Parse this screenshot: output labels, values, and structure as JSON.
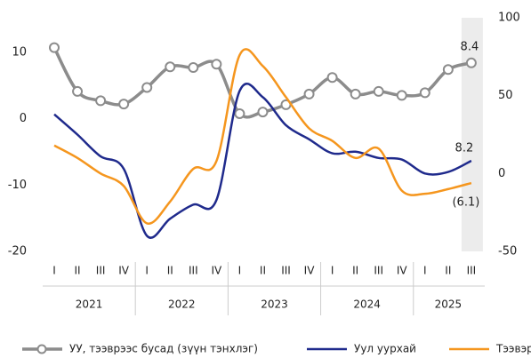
{
  "chart_data": {
    "type": "line",
    "categories": [
      "I",
      "II",
      "III",
      "IV",
      "I",
      "II",
      "III",
      "IV",
      "I",
      "II",
      "III",
      "IV",
      "I",
      "II",
      "III",
      "IV",
      "I",
      "II",
      "III"
    ],
    "years": [
      "2021",
      "2022",
      "2023",
      "2024",
      "2025"
    ],
    "ylim": [
      -20,
      15.2
    ],
    "yticks": [
      -20,
      -10,
      0,
      10
    ],
    "y2lim": [
      -50,
      100
    ],
    "y2ticks": [
      -50,
      0,
      50,
      100
    ],
    "series": [
      {
        "name": "УУ, тээврээс бусад (зүүн тэнхлэг)",
        "color": "#8c8c8c",
        "markers": true,
        "values": [
          10.7,
          4.1,
          2.7,
          2.2,
          4.7,
          7.8,
          7.7,
          8.2,
          0.75,
          1.0,
          2.1,
          3.7,
          6.2,
          3.7,
          4.1,
          3.5,
          3.9,
          7.4,
          8.4
        ],
        "value_labels": [
          null,
          null,
          null,
          null,
          null,
          null,
          null,
          null,
          null,
          null,
          null,
          null,
          null,
          null,
          null,
          null,
          null,
          null,
          "8.4"
        ]
      },
      {
        "name": "Уул уурхай",
        "color": "#1f2a8c",
        "axis": "y2",
        "values": [
          38,
          25,
          11,
          3,
          -40,
          -29,
          -20,
          -17,
          53,
          49,
          31,
          22,
          13,
          14,
          10,
          9,
          0,
          1,
          8.2
        ],
        "value_labels": [
          null,
          null,
          null,
          null,
          null,
          null,
          null,
          null,
          null,
          null,
          null,
          null,
          null,
          null,
          null,
          null,
          null,
          null,
          "8.2"
        ]
      },
      {
        "name": "Тээвэр",
        "color": "#f5961e",
        "axis": "y2",
        "values": [
          18,
          10,
          0,
          -8,
          -32,
          -18,
          3,
          8,
          76,
          69,
          49,
          29,
          21,
          10,
          16,
          -11,
          -13,
          -10,
          -6.1
        ],
        "value_labels": [
          null,
          null,
          null,
          null,
          null,
          null,
          null,
          null,
          null,
          null,
          null,
          null,
          null,
          null,
          null,
          null,
          null,
          null,
          "(6.1)"
        ]
      }
    ]
  }
}
